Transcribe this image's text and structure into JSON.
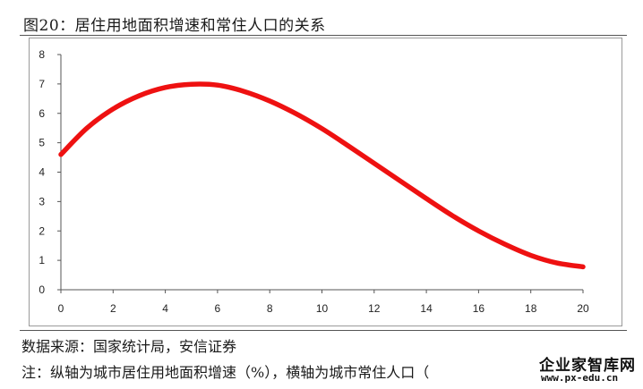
{
  "figure": {
    "title": "图20：居住用地面积增速和常住人口的关系",
    "source": "数据来源：国家统计局，安信证券",
    "note": "注：纵轴为城市居住用地面积增速（%），横轴为城市常住人口（"
  },
  "watermark": {
    "name": "企业家智库网",
    "url": "www.px-edu.cn"
  },
  "chart_data": {
    "type": "line",
    "title": "",
    "xlabel": "",
    "ylabel": "",
    "xlim": [
      0,
      20
    ],
    "ylim": [
      0,
      8
    ],
    "xticks": [
      "0",
      "2",
      "4",
      "6",
      "8",
      "10",
      "12",
      "14",
      "16",
      "18",
      "20"
    ],
    "yticks": [
      "0",
      "1",
      "2",
      "3",
      "4",
      "5",
      "6",
      "7",
      "8"
    ],
    "grid": false,
    "legend": "none",
    "series": [
      {
        "color": "#ee1111",
        "x": [
          0,
          1,
          2,
          3,
          4,
          5,
          6,
          7,
          8,
          9,
          10,
          11,
          12,
          13,
          14,
          15,
          16,
          17,
          18,
          19,
          20
        ],
        "y": [
          4.6,
          5.5,
          6.15,
          6.6,
          6.88,
          6.99,
          6.96,
          6.75,
          6.42,
          5.99,
          5.48,
          4.9,
          4.3,
          3.7,
          3.1,
          2.52,
          2.0,
          1.55,
          1.17,
          0.91,
          0.78
        ]
      }
    ]
  }
}
